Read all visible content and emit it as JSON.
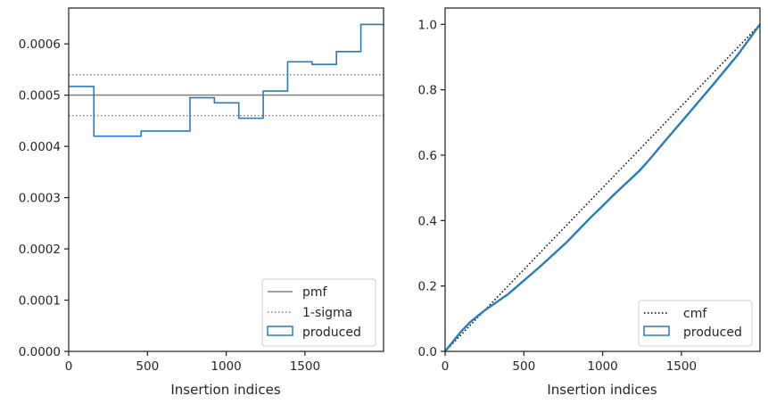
{
  "chart_data": [
    {
      "type": "step",
      "xlabel": "Insertion indices",
      "ylabel": "",
      "xlim": [
        0,
        1999
      ],
      "ylim": [
        0,
        0.00067
      ],
      "x_ticks": [
        0,
        500,
        1000,
        1500
      ],
      "x_tick_labels": [
        "0",
        "500",
        "1000",
        "1500"
      ],
      "y_ticks": [
        0,
        0.0001,
        0.0002,
        0.0003,
        0.0004,
        0.0005,
        0.0006
      ],
      "y_tick_labels": [
        "0.0000",
        "0.0001",
        "0.0002",
        "0.0003",
        "0.0004",
        "0.0005",
        "0.0006"
      ],
      "hlines": [
        {
          "name": "pmf",
          "value": 0.0005,
          "style": "solid",
          "color": "#808080"
        },
        {
          "name": "1-sigma",
          "value": 0.00054,
          "style": "dotted",
          "color": "#808080"
        },
        {
          "name": "",
          "value": 0.00046,
          "style": "dotted",
          "color": "#808080"
        }
      ],
      "series": [
        {
          "name": "produced",
          "color": "#2b7bb9",
          "bin_edges": [
            0,
            160,
            460,
            770,
            925,
            1080,
            1235,
            1390,
            1545,
            1700,
            1855,
            1999
          ],
          "values": [
            0.000517,
            0.00042,
            0.00043,
            0.000495,
            0.000485,
            0.000455,
            0.000508,
            0.000565,
            0.00056,
            0.000585,
            0.000638
          ]
        }
      ],
      "legend": {
        "position": "lower right",
        "entries": [
          {
            "label": "pmf",
            "style": "solid-line",
            "color": "#808080"
          },
          {
            "label": "1-sigma",
            "style": "dotted-line",
            "color": "#808080"
          },
          {
            "label": "produced",
            "style": "box",
            "color": "#2b7bb9"
          }
        ]
      }
    },
    {
      "type": "line",
      "xlabel": "Insertion indices",
      "ylabel": "",
      "xlim": [
        0,
        1999
      ],
      "ylim": [
        0,
        1.05
      ],
      "x_ticks": [
        0,
        500,
        1000,
        1500
      ],
      "x_tick_labels": [
        "0",
        "500",
        "1000",
        "1500"
      ],
      "y_ticks": [
        0,
        0.2,
        0.4,
        0.6,
        0.8,
        1.0
      ],
      "y_tick_labels": [
        "0.0",
        "0.2",
        "0.4",
        "0.6",
        "0.8",
        "1.0"
      ],
      "series": [
        {
          "name": "cmf",
          "style": "dotted",
          "color": "#000000",
          "x": [
            0,
            1999
          ],
          "y": [
            0,
            1.0
          ]
        },
        {
          "name": "produced",
          "style": "solid",
          "color": "#2b7bb9",
          "x": [
            0,
            50,
            100,
            160,
            250,
            400,
            460,
            600,
            770,
            925,
            1000,
            1080,
            1235,
            1300,
            1390,
            1545,
            1700,
            1855,
            1999
          ],
          "y": [
            0,
            0.03,
            0.06,
            0.09,
            0.125,
            0.175,
            0.2,
            0.258,
            0.333,
            0.41,
            0.445,
            0.483,
            0.553,
            0.588,
            0.64,
            0.727,
            0.815,
            0.905,
            1.0
          ]
        }
      ],
      "legend": {
        "position": "lower right",
        "entries": [
          {
            "label": "cmf",
            "style": "dotted-line",
            "color": "#000000"
          },
          {
            "label": "produced",
            "style": "box",
            "color": "#2b7bb9"
          }
        ]
      }
    }
  ]
}
